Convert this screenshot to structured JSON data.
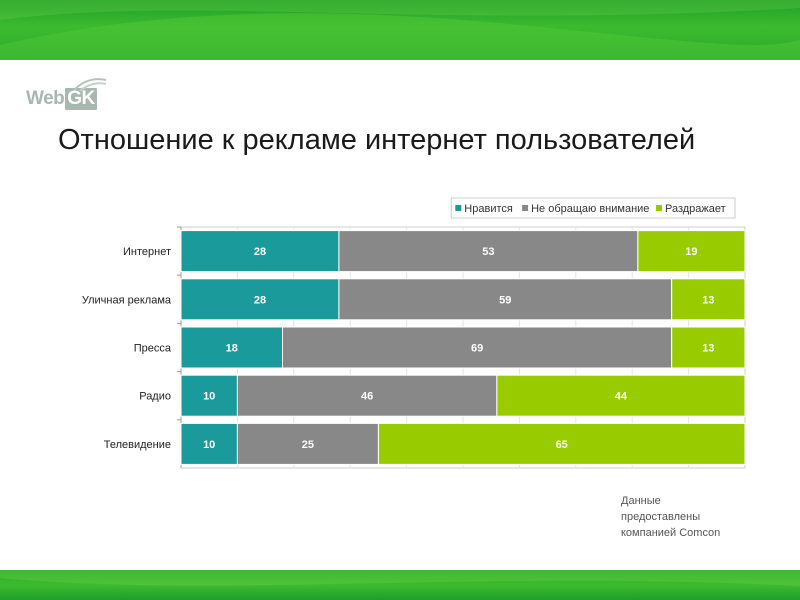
{
  "logo": {
    "small_text": "",
    "web": "Web",
    "gk": "GK"
  },
  "title": "Отношение к рекламе интернет пользователей",
  "note": [
    "Данные",
    "предоставлены",
    "компанией Comcon"
  ],
  "chart_data": {
    "type": "bar",
    "orientation": "horizontal",
    "stacked": true,
    "percent_stacked": true,
    "categories": [
      "Интернет",
      "Уличная реклама",
      "Пресса",
      "Радио",
      "Телевидение"
    ],
    "series": [
      {
        "name": "Нравится",
        "color": "#1a9a9a",
        "values": [
          28,
          28,
          18,
          10,
          10
        ]
      },
      {
        "name": "Не обращаю внимание",
        "color": "#888888",
        "values": [
          53,
          59,
          69,
          46,
          25
        ]
      },
      {
        "name": "Раздражает",
        "color": "#99cc00",
        "values": [
          19,
          13,
          13,
          44,
          65
        ]
      }
    ],
    "title": "",
    "xlabel": "",
    "ylabel": "",
    "xlim": [
      0,
      100
    ],
    "legend": "top-right",
    "grid": true
  }
}
